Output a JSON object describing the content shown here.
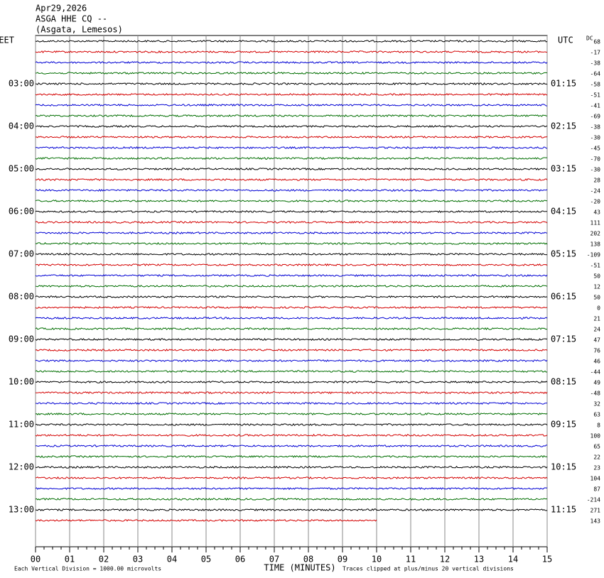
{
  "header": {
    "date": "Apr29,2026",
    "station": "ASGA HHE CQ --",
    "location": "(Asgata, Lemesos)"
  },
  "chart_data": {
    "type": "helicorder",
    "left_timezone": "EET",
    "right_timezone": "UTC",
    "left_hour_labels": [
      "03:00",
      "04:00",
      "05:00",
      "06:00",
      "07:00",
      "08:00",
      "09:00",
      "10:00",
      "11:00",
      "12:00",
      "13:00"
    ],
    "right_hour_labels": [
      "01:15",
      "02:15",
      "03:15",
      "04:15",
      "05:15",
      "06:15",
      "07:15",
      "08:15",
      "09:15",
      "10:15",
      "11:15"
    ],
    "dc_label": "DC",
    "dc_offsets": [
      68,
      -17,
      -38,
      -64,
      -58,
      -51,
      -41,
      -69,
      -38,
      -30,
      -45,
      -70,
      -30,
      28,
      -24,
      -20,
      43,
      111,
      202,
      138,
      -109,
      -51,
      50,
      12,
      50,
      0,
      21,
      24,
      47,
      76,
      46,
      -44,
      49,
      -48,
      32,
      63,
      8,
      100,
      65,
      22,
      23,
      104,
      87,
      -214,
      271,
      143
    ],
    "trace_colors": [
      "#000000",
      "#d40000",
      "#0000d4",
      "#006e00"
    ],
    "xlim": [
      0,
      15
    ],
    "xticks": [
      {
        "value": 0,
        "label": "00"
      },
      {
        "value": 1,
        "label": "01"
      },
      {
        "value": 2,
        "label": "02"
      },
      {
        "value": 3,
        "label": "03"
      },
      {
        "value": 4,
        "label": "04"
      },
      {
        "value": 5,
        "label": "05"
      },
      {
        "value": 6,
        "label": "06"
      },
      {
        "value": 7,
        "label": "07"
      },
      {
        "value": 8,
        "label": "08"
      },
      {
        "value": 9,
        "label": "09"
      },
      10,
      11,
      12,
      13,
      14,
      15
    ],
    "xlabel": "TIME (MINUTES)",
    "scale_note": "Each Vertical Division = 1000.00 microvolts",
    "clip_note": "Traces clipped at plus/minus 20 vertical divisions"
  }
}
